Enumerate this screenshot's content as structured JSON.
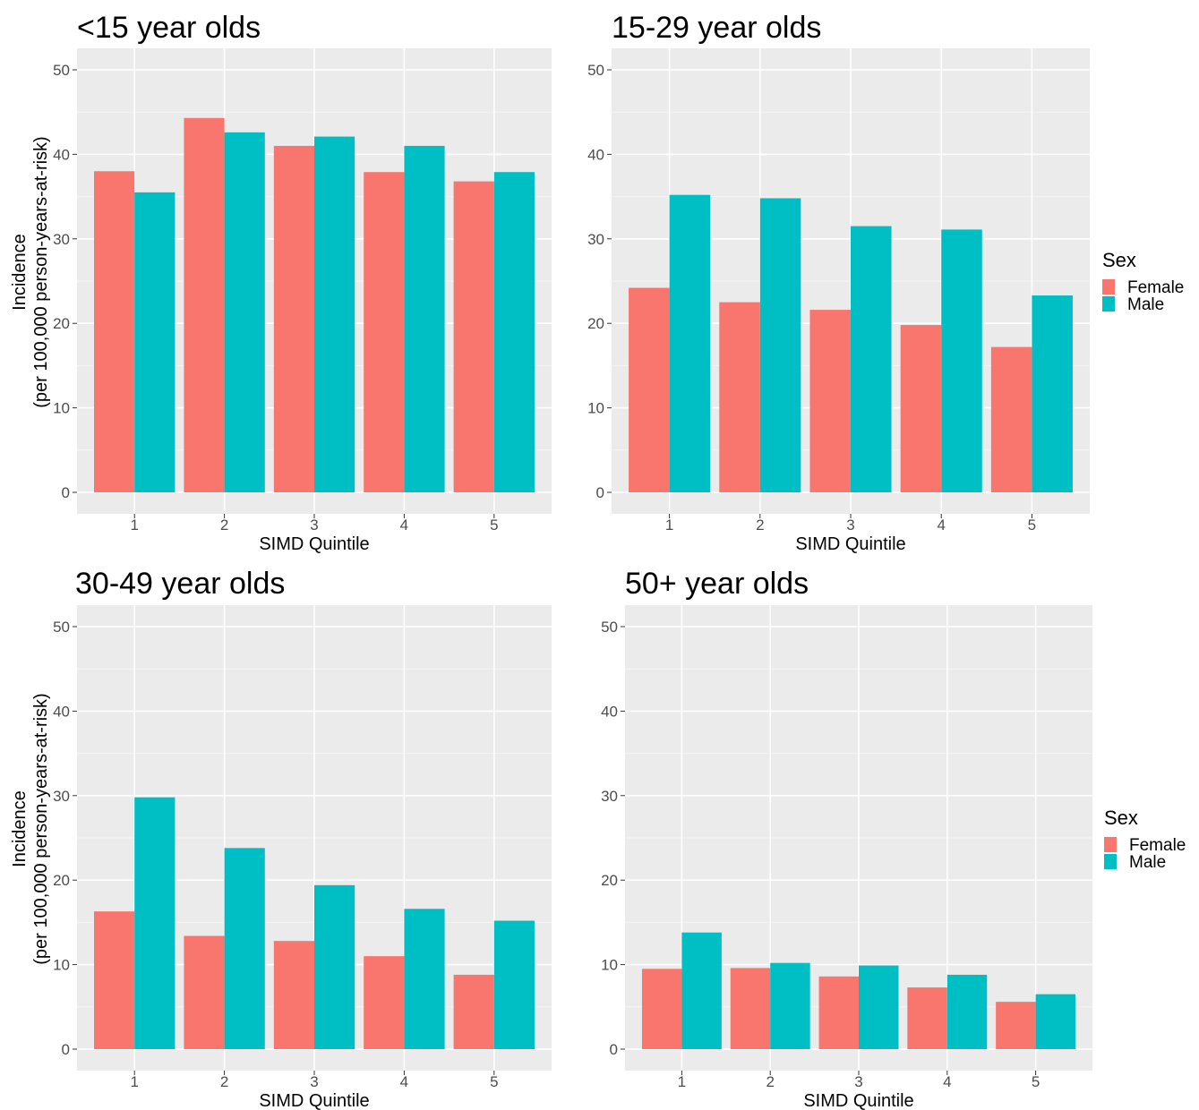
{
  "chart_data": [
    {
      "type": "bar",
      "title": "<15 year olds",
      "xlabel": "SIMD Quintile",
      "ylabel": [
        "Incidence",
        "(per 100,000 person-years-at-risk)"
      ],
      "categories": [
        "1",
        "2",
        "3",
        "4",
        "5"
      ],
      "series": [
        {
          "name": "Female",
          "values": [
            38.0,
            44.3,
            41.0,
            37.9,
            36.8
          ]
        },
        {
          "name": "Male",
          "values": [
            35.5,
            42.6,
            42.1,
            41.0,
            37.9
          ]
        }
      ],
      "ylim": [
        0,
        52
      ],
      "yticks": [
        "0",
        "10",
        "20",
        "30",
        "40",
        "50"
      ],
      "legend": null
    },
    {
      "type": "bar",
      "title": "15-29 year olds",
      "xlabel": "SIMD Quintile",
      "ylabel": null,
      "categories": [
        "1",
        "2",
        "3",
        "4",
        "5"
      ],
      "series": [
        {
          "name": "Female",
          "values": [
            24.2,
            22.5,
            21.6,
            19.8,
            17.2
          ]
        },
        {
          "name": "Male",
          "values": [
            35.2,
            34.8,
            31.5,
            31.1,
            23.3
          ]
        }
      ],
      "ylim": [
        0,
        52
      ],
      "yticks": [
        "0",
        "10",
        "20",
        "30",
        "40",
        "50"
      ],
      "legend": {
        "title": "Sex",
        "entries": [
          "Female",
          "Male"
        ],
        "position": "right"
      }
    },
    {
      "type": "bar",
      "title": "30-49 year olds",
      "xlabel": "SIMD Quintile",
      "ylabel": [
        "Incidence",
        "(per 100,000 person-years-at-risk)"
      ],
      "categories": [
        "1",
        "2",
        "3",
        "4",
        "5"
      ],
      "series": [
        {
          "name": "Female",
          "values": [
            16.3,
            13.4,
            12.8,
            11.0,
            8.8
          ]
        },
        {
          "name": "Male",
          "values": [
            29.8,
            23.8,
            19.4,
            16.6,
            15.2
          ]
        }
      ],
      "ylim": [
        0,
        52
      ],
      "yticks": [
        "0",
        "10",
        "20",
        "30",
        "40",
        "50"
      ],
      "legend": null
    },
    {
      "type": "bar",
      "title": "50+ year olds",
      "xlabel": "SIMD Quintile",
      "ylabel": null,
      "categories": [
        "1",
        "2",
        "3",
        "4",
        "5"
      ],
      "series": [
        {
          "name": "Female",
          "values": [
            9.5,
            9.6,
            8.6,
            7.3,
            5.6
          ]
        },
        {
          "name": "Male",
          "values": [
            13.8,
            10.2,
            9.9,
            8.8,
            6.5
          ]
        }
      ],
      "ylim": [
        0,
        52
      ],
      "yticks": [
        "0",
        "10",
        "20",
        "30",
        "40",
        "50"
      ],
      "legend": {
        "title": "Sex",
        "entries": [
          "Female",
          "Male"
        ],
        "position": "right"
      }
    }
  ],
  "colors": {
    "Female": "#F8766D",
    "Male": "#00BFC4",
    "panel_background": "#EBEBEB",
    "grid_major": "#FFFFFF",
    "grid_minor": "#F4F4F4",
    "tick_text": "#4D4D4D"
  }
}
